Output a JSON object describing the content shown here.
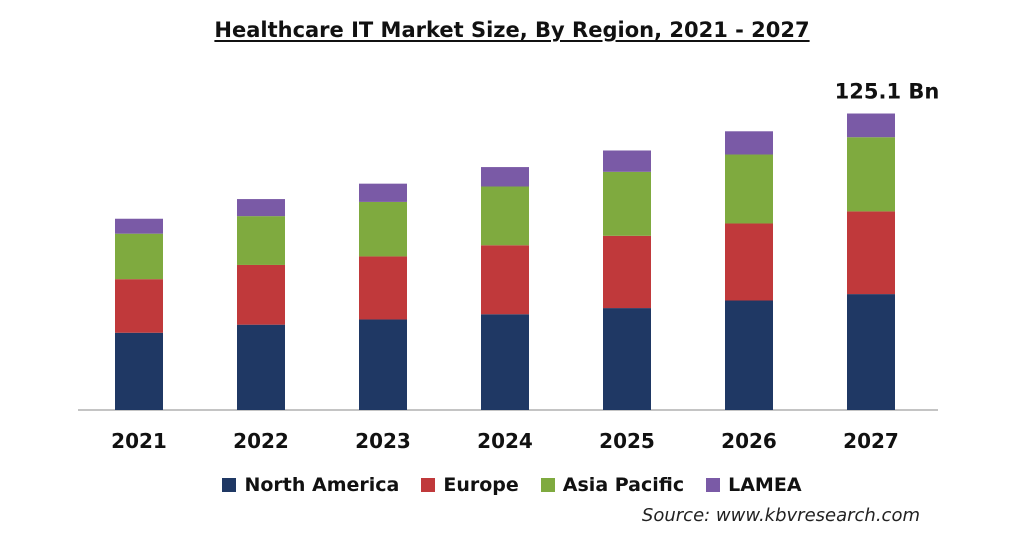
{
  "chart_data": {
    "type": "bar",
    "stacked": true,
    "title": "Healthcare  IT Market Size, By Region, 2021  - 2027",
    "categories": [
      "2021",
      "2022",
      "2023",
      "2024",
      "2025",
      "2026",
      "2027"
    ],
    "series": [
      {
        "name": "North America",
        "color": "#1f3864",
        "values": [
          32.6,
          36.0,
          38.2,
          40.4,
          43.0,
          46.2,
          48.9
        ]
      },
      {
        "name": "Europe",
        "color": "#c0393b",
        "values": [
          22.6,
          25.2,
          26.6,
          29.1,
          30.5,
          32.5,
          34.9
        ]
      },
      {
        "name": "Asia Pacific",
        "color": "#7faa3f",
        "values": [
          19.2,
          20.6,
          23.0,
          24.8,
          27.0,
          29.1,
          31.3
        ]
      },
      {
        "name": "LAMEA",
        "color": "#7a5aa6",
        "values": [
          6.3,
          7.2,
          7.7,
          8.2,
          9.0,
          9.8,
          10.0
        ]
      }
    ],
    "annotations": [
      {
        "category": "2027",
        "text": "125.1 Bn"
      }
    ],
    "ylim": [
      0,
      130
    ],
    "grid": false,
    "legend_position": "bottom",
    "xlabel": "",
    "ylabel": ""
  },
  "source": "Source: www.kbvresearch.com"
}
